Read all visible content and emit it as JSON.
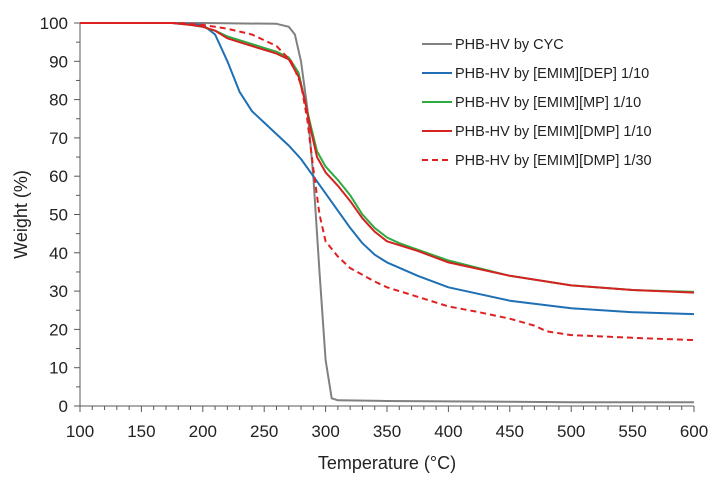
{
  "chart_data": {
    "type": "line",
    "title": "",
    "xlabel": "Temperature (°C)",
    "ylabel": "Weight (%)",
    "xlim": [
      100,
      600
    ],
    "ylim": [
      0,
      100
    ],
    "x_ticks": [
      100,
      150,
      200,
      250,
      300,
      350,
      400,
      450,
      500,
      550,
      600
    ],
    "y_ticks": [
      0,
      10,
      20,
      30,
      40,
      50,
      60,
      70,
      80,
      90,
      100
    ],
    "grid": false,
    "legend_position": "top-right",
    "series": [
      {
        "name": "PHB-HV by CYC",
        "color": "#808080",
        "dash": "solid",
        "points": [
          [
            100,
            100
          ],
          [
            200,
            100
          ],
          [
            260,
            99.8
          ],
          [
            270,
            99
          ],
          [
            275,
            97
          ],
          [
            280,
            90
          ],
          [
            285,
            78
          ],
          [
            290,
            60
          ],
          [
            295,
            35
          ],
          [
            300,
            12
          ],
          [
            305,
            2
          ],
          [
            310,
            1.5
          ],
          [
            350,
            1.3
          ],
          [
            400,
            1.2
          ],
          [
            450,
            1.1
          ],
          [
            500,
            1
          ],
          [
            550,
            1
          ],
          [
            600,
            1
          ]
        ]
      },
      {
        "name": "PHB-HV by [EMIM][DEP] 1/10",
        "color": "#1f6fb4",
        "dash": "solid",
        "points": [
          [
            100,
            100
          ],
          [
            175,
            100
          ],
          [
            200,
            99.5
          ],
          [
            210,
            97
          ],
          [
            220,
            90
          ],
          [
            230,
            82
          ],
          [
            240,
            77
          ],
          [
            250,
            74
          ],
          [
            260,
            71
          ],
          [
            270,
            68
          ],
          [
            280,
            64.5
          ],
          [
            290,
            60
          ],
          [
            300,
            55.5
          ],
          [
            310,
            51
          ],
          [
            320,
            46.5
          ],
          [
            330,
            42.5
          ],
          [
            340,
            39.5
          ],
          [
            350,
            37.5
          ],
          [
            375,
            34
          ],
          [
            400,
            31
          ],
          [
            450,
            27.5
          ],
          [
            500,
            25.5
          ],
          [
            550,
            24.5
          ],
          [
            600,
            24
          ]
        ]
      },
      {
        "name": "PHB-HV by [EMIM][MP] 1/10",
        "color": "#2eab3e",
        "dash": "solid",
        "points": [
          [
            100,
            100
          ],
          [
            175,
            100
          ],
          [
            190,
            99.5
          ],
          [
            200,
            99
          ],
          [
            210,
            98
          ],
          [
            220,
            96.5
          ],
          [
            230,
            95.5
          ],
          [
            250,
            93.5
          ],
          [
            260,
            92.5
          ],
          [
            270,
            91
          ],
          [
            278,
            87
          ],
          [
            283,
            80
          ],
          [
            288,
            73
          ],
          [
            293,
            66.5
          ],
          [
            300,
            62.5
          ],
          [
            310,
            59
          ],
          [
            320,
            55
          ],
          [
            330,
            50
          ],
          [
            340,
            46.5
          ],
          [
            350,
            44
          ],
          [
            360,
            42.5
          ],
          [
            400,
            38
          ],
          [
            450,
            34
          ],
          [
            500,
            31.5
          ],
          [
            550,
            30.3
          ],
          [
            600,
            29.8
          ]
        ]
      },
      {
        "name": "PHB-HV by [EMIM][DMP] 1/10",
        "color": "#d42222",
        "dash": "solid",
        "points": [
          [
            100,
            100
          ],
          [
            175,
            100
          ],
          [
            190,
            99.5
          ],
          [
            200,
            99
          ],
          [
            210,
            98
          ],
          [
            220,
            96
          ],
          [
            230,
            95
          ],
          [
            250,
            93
          ],
          [
            260,
            92
          ],
          [
            270,
            90.5
          ],
          [
            278,
            86
          ],
          [
            283,
            80
          ],
          [
            288,
            72
          ],
          [
            293,
            65
          ],
          [
            300,
            61
          ],
          [
            310,
            57.5
          ],
          [
            320,
            53.5
          ],
          [
            330,
            49
          ],
          [
            340,
            45.5
          ],
          [
            350,
            43
          ],
          [
            375,
            40.5
          ],
          [
            400,
            37.5
          ],
          [
            450,
            34
          ],
          [
            500,
            31.5
          ],
          [
            550,
            30.3
          ],
          [
            600,
            29.6
          ]
        ]
      },
      {
        "name": "PHB-HV by [EMIM][DMP] 1/30",
        "color": "#e02020",
        "dash": "dashed",
        "points": [
          [
            100,
            100
          ],
          [
            180,
            100
          ],
          [
            200,
            99.5
          ],
          [
            220,
            98.5
          ],
          [
            240,
            97
          ],
          [
            260,
            94
          ],
          [
            272,
            90
          ],
          [
            280,
            84
          ],
          [
            285,
            75
          ],
          [
            290,
            62
          ],
          [
            295,
            50
          ],
          [
            300,
            43
          ],
          [
            310,
            39
          ],
          [
            320,
            36
          ],
          [
            340,
            32.5
          ],
          [
            350,
            31
          ],
          [
            375,
            28.5
          ],
          [
            400,
            26
          ],
          [
            425,
            24.5
          ],
          [
            450,
            22.8
          ],
          [
            470,
            21
          ],
          [
            480,
            19.5
          ],
          [
            500,
            18.5
          ],
          [
            550,
            17.8
          ],
          [
            600,
            17.2
          ]
        ]
      }
    ]
  }
}
